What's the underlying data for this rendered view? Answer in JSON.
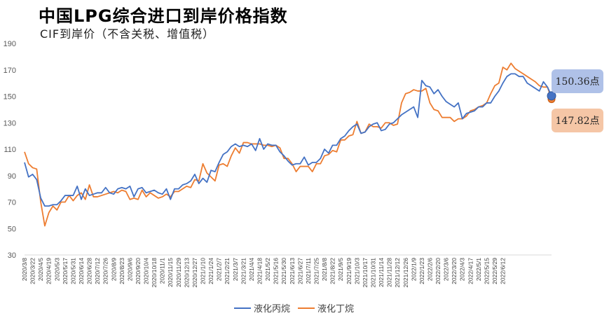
{
  "title": "中国LPG综合进口到岸价格指数",
  "subtitle": "CIF到岸价（不含关税、增值税）",
  "chart_data": {
    "type": "line",
    "title": "中国LPG综合进口到岸价格指数",
    "subtitle": "CIF到岸价（不含关税、增值税）",
    "ylim": [
      30,
      190
    ],
    "yticks": [
      30,
      50,
      70,
      90,
      110,
      130,
      150,
      170,
      190
    ],
    "grid": false,
    "legend_position": "bottom",
    "x_start": "2020/3/8",
    "x_tick_labels": [
      "2020/3/8",
      "2020/3/22",
      "2020/4/5",
      "2020/4/19",
      "2020/5/3",
      "2020/5/17",
      "2020/5/31",
      "2020/6/14",
      "2020/6/28",
      "2020/7/12",
      "2020/7/26",
      "2020/8/9",
      "2020/8/23",
      "2020/9/6",
      "2020/9/20",
      "2020/10/4",
      "2020/10/18",
      "2020/11/1",
      "2020/11/15",
      "2020/11/29",
      "2020/12/13",
      "2020/12/27",
      "2021/1/10",
      "2021/1/24",
      "2021/2/7",
      "2021/2/21",
      "2021/3/7",
      "2021/3/21",
      "2021/4/4",
      "2021/4/18",
      "2021/5/2",
      "2021/5/16",
      "2021/5/30",
      "2021/6/13",
      "2021/6/27",
      "2021/7/11",
      "2021/7/25",
      "2021/8/8",
      "2021/8/22",
      "2021/9/5",
      "2021/9/19",
      "2021/10/3",
      "2021/10/17",
      "2021/10/31",
      "2021/11/14",
      "2021/11/28",
      "2021/12/12",
      "2021/12/26",
      "2022/1/9",
      "2022/1/23",
      "2022/2/6",
      "2022/2/20",
      "2022/3/6",
      "2022/3/20",
      "2022/4/3",
      "2022/4/17",
      "2022/5/1",
      "2022/5/15",
      "2022/5/29",
      "2022/6/12"
    ],
    "series": [
      {
        "name": "液化丙烷",
        "color": "#4472C4",
        "values": [
          100,
          89,
          91,
          87,
          73,
          67,
          67,
          68,
          68,
          71,
          75,
          75,
          75,
          82,
          72,
          80,
          75,
          76,
          77,
          77,
          81,
          77,
          76,
          80,
          81,
          80,
          82,
          74,
          80,
          81,
          77,
          78,
          79,
          77,
          76,
          80,
          72,
          80,
          80,
          83,
          84,
          86,
          91,
          84,
          88,
          85,
          94,
          93,
          100,
          106,
          108,
          112,
          114,
          112,
          113,
          112,
          114,
          109,
          118,
          110,
          114,
          113,
          113,
          108,
          105,
          101,
          98,
          99,
          99,
          104,
          98,
          100,
          100,
          103,
          110,
          107,
          113,
          113,
          118,
          120,
          124,
          127,
          129,
          122,
          123,
          127,
          129,
          130,
          124,
          125,
          129,
          130,
          133,
          136,
          138,
          140,
          142,
          134,
          162,
          158,
          157,
          152,
          155,
          150,
          146,
          144,
          142,
          145,
          133,
          137,
          138,
          139,
          142,
          142,
          145,
          145,
          150,
          154,
          160,
          165,
          167,
          167,
          165,
          165,
          160,
          158,
          156,
          154,
          161,
          157,
          150.36
        ],
        "last_label": "150.36点"
      },
      {
        "name": "液化丁烷",
        "color": "#ED7D31",
        "values": [
          108,
          99,
          96,
          95,
          70,
          52,
          62,
          67,
          64,
          70,
          70,
          75,
          71,
          75,
          77,
          72,
          83,
          74,
          74,
          75,
          76,
          77,
          78,
          77,
          79,
          78,
          72,
          73,
          72,
          79,
          74,
          77,
          75,
          73,
          74,
          76,
          74,
          78,
          78,
          80,
          82,
          81,
          87,
          86,
          99,
          92,
          89,
          86,
          98,
          99,
          97,
          105,
          111,
          107,
          115,
          115,
          114,
          114,
          114,
          113,
          113,
          112,
          113,
          111,
          103,
          103,
          99,
          93,
          97,
          97,
          97,
          93,
          99,
          99,
          105,
          106,
          109,
          108,
          117,
          117,
          120,
          121,
          131,
          122,
          123,
          129,
          127,
          127,
          126,
          130,
          130,
          128,
          129,
          145,
          152,
          153,
          155,
          154,
          154,
          156,
          145,
          140,
          139,
          134,
          134,
          134,
          131,
          133,
          133,
          135,
          139,
          140,
          142,
          143,
          145,
          152,
          158,
          160,
          172,
          170,
          175,
          171,
          169,
          167,
          165,
          163,
          161,
          158,
          157,
          157,
          147.82
        ],
        "last_label": "147.82点"
      }
    ]
  },
  "callouts": {
    "propane": "150.36点",
    "butane": "147.82点"
  },
  "legend": {
    "propane": "液化丙烷",
    "butane": "液化丁烷"
  }
}
